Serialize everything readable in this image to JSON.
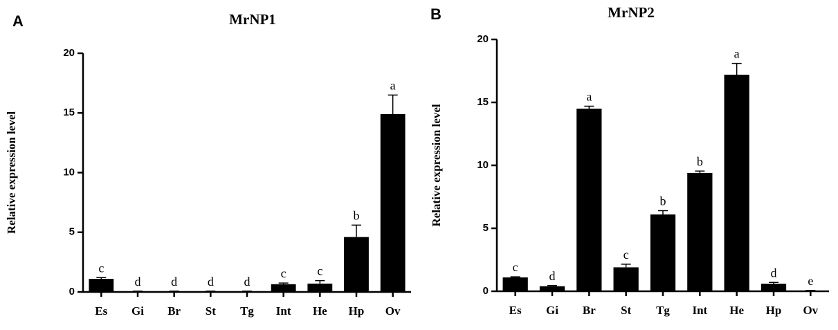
{
  "chart_data": [
    {
      "type": "bar",
      "panel": "A",
      "title": "MrNP1",
      "y_label": "Relative expression level",
      "categories": [
        "Es",
        "Gi",
        "Br",
        "St",
        "Tg",
        "Int",
        "He",
        "Hp",
        "Ov"
      ],
      "values": [
        1.1,
        0.05,
        0.05,
        0.05,
        0.05,
        0.65,
        0.7,
        4.6,
        14.9
      ],
      "errors": [
        0.1,
        0.02,
        0.02,
        0.02,
        0.02,
        0.1,
        0.25,
        1.0,
        1.6
      ],
      "annotations": [
        "c",
        "d",
        "d",
        "d",
        "d",
        "c",
        "c",
        "b",
        "a"
      ],
      "color": "#000000",
      "ylim": [
        0,
        20
      ],
      "yticks": [
        0,
        5,
        10,
        15,
        20
      ]
    },
    {
      "type": "bar",
      "panel": "B",
      "title": "MrNP2",
      "y_label": "Relative expression level",
      "categories": [
        "Es",
        "Gi",
        "Br",
        "St",
        "Tg",
        "Int",
        "He",
        "Hp",
        "Ov"
      ],
      "values": [
        1.1,
        0.4,
        14.5,
        1.9,
        6.1,
        9.4,
        17.2,
        0.6,
        0.05
      ],
      "errors": [
        0.05,
        0.05,
        0.2,
        0.25,
        0.3,
        0.15,
        0.9,
        0.1,
        0.02
      ],
      "annotations": [
        "c",
        "d",
        "a",
        "c",
        "b",
        "b",
        "a",
        "d",
        "e"
      ],
      "color": "#000000",
      "ylim": [
        0,
        20
      ],
      "yticks": [
        0,
        5,
        10,
        15,
        20
      ]
    }
  ]
}
